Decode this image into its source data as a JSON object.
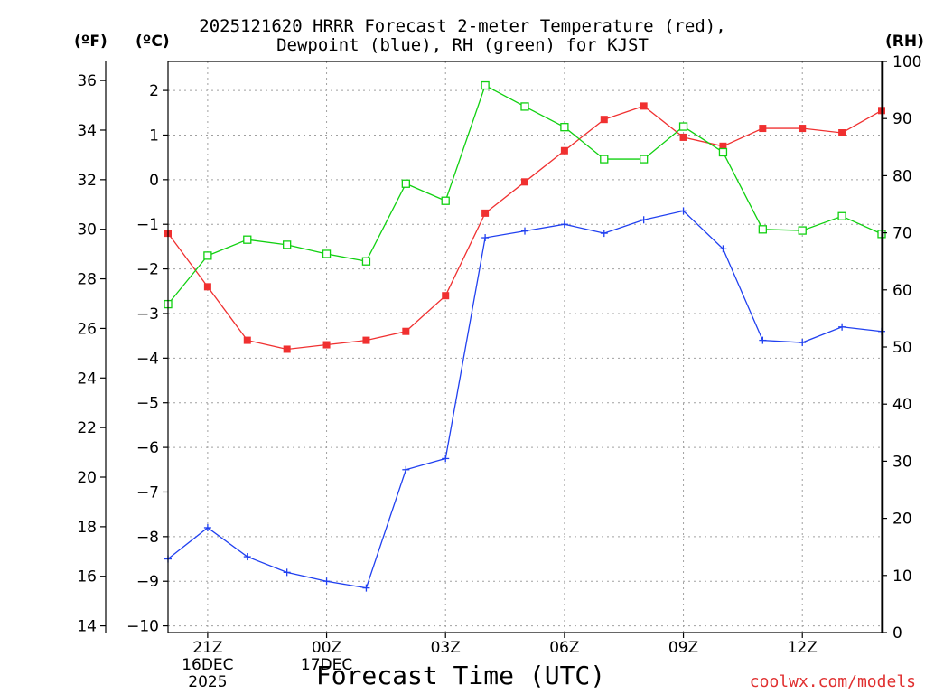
{
  "title_line1": "2025121620 HRRR Forecast 2-meter Temperature (red),",
  "title_line2": "Dewpoint (blue), RH (green) for KJST",
  "unit_f": "(ºF)",
  "unit_c": "(ºC)",
  "unit_rh": "(RH)",
  "xlabel": "Forecast Time (UTC)",
  "credit": "coolwx.com/models",
  "colors": {
    "temperature": "#f03030",
    "dewpoint": "#2040f0",
    "rh": "#10d010",
    "credit": "#e03030",
    "grid": "#a0a0a0"
  },
  "chart_data": {
    "type": "line",
    "title": "2025121620 HRRR Forecast 2-meter Temperature (red), Dewpoint (blue), RH (green) for KJST",
    "xlabel": "Forecast Time (UTC)",
    "x": [
      "20Z",
      "21Z",
      "22Z",
      "23Z",
      "00Z",
      "01Z",
      "02Z",
      "03Z",
      "04Z",
      "05Z",
      "06Z",
      "07Z",
      "08Z",
      "09Z",
      "10Z",
      "11Z",
      "12Z",
      "13Z",
      "14Z"
    ],
    "x_ticks": [
      {
        "index": 1,
        "label": "21Z",
        "sub1": "16DEC",
        "sub2": "2025"
      },
      {
        "index": 4,
        "label": "00Z",
        "sub1": "17DEC",
        "sub2": ""
      },
      {
        "index": 7,
        "label": "03Z",
        "sub1": "",
        "sub2": ""
      },
      {
        "index": 10,
        "label": "06Z",
        "sub1": "",
        "sub2": ""
      },
      {
        "index": 13,
        "label": "09Z",
        "sub1": "",
        "sub2": ""
      },
      {
        "index": 16,
        "label": "12Z",
        "sub1": "",
        "sub2": ""
      }
    ],
    "y_left_f": {
      "ticks": [
        14,
        16,
        18,
        20,
        22,
        24,
        26,
        28,
        30,
        32,
        34,
        36
      ]
    },
    "y_left_c": {
      "range": [
        -10.15,
        2.65
      ],
      "ticks": [
        -10,
        -9,
        -8,
        -7,
        -6,
        -5,
        -4,
        -3,
        -2,
        -1,
        0,
        1,
        2
      ]
    },
    "y_right_rh": {
      "range": [
        0,
        100
      ],
      "ticks": [
        0,
        10,
        20,
        30,
        40,
        50,
        60,
        70,
        80,
        90,
        100
      ]
    },
    "grid": true,
    "series": [
      {
        "name": "Temperature",
        "axis": "c",
        "marker": "filled-square",
        "color_key": "temperature",
        "values": [
          -1.2,
          -2.4,
          -3.6,
          -3.8,
          -3.7,
          -3.6,
          -3.4,
          -2.6,
          -0.75,
          -0.05,
          0.65,
          1.35,
          1.65,
          0.95,
          0.75,
          1.15,
          1.15,
          1.05,
          1.55
        ]
      },
      {
        "name": "Dewpoint",
        "axis": "c",
        "marker": "plus",
        "color_key": "dewpoint",
        "values": [
          -8.5,
          -7.8,
          -8.45,
          -8.8,
          -9.0,
          -9.15,
          -6.5,
          -6.25,
          -1.3,
          -1.15,
          -1.0,
          -1.2,
          -0.9,
          -0.7,
          -1.55,
          -3.6,
          -3.65,
          -3.3,
          -3.4
        ]
      },
      {
        "name": "RH",
        "axis": "rh",
        "marker": "open-square",
        "color_key": "rh",
        "values": [
          57.5,
          66,
          68.8,
          67.9,
          66.3,
          65,
          78.6,
          75.6,
          95.8,
          92.1,
          88.5,
          82.9,
          82.9,
          88.6,
          84.1,
          70.6,
          70.4,
          72.9,
          69.8
        ]
      }
    ]
  }
}
